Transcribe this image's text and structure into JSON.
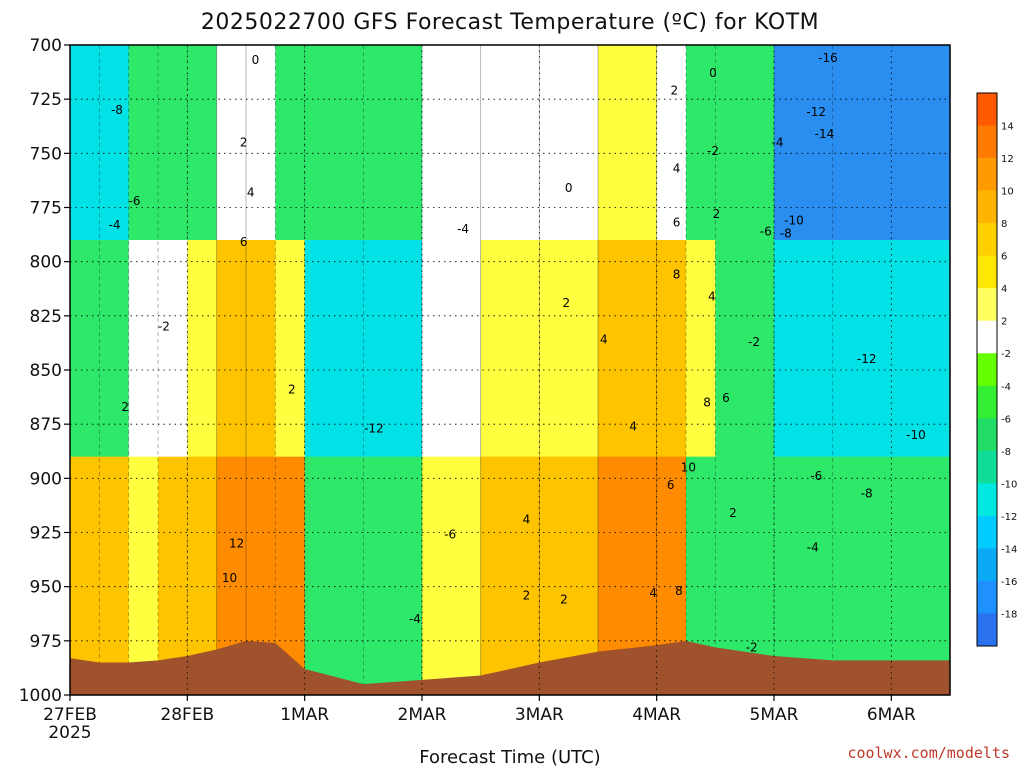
{
  "chart_data": {
    "type": "heatmap",
    "title": "2025022700 GFS Forecast Temperature (ºC) for KOTM",
    "xlabel": "Forecast Time (UTC)",
    "ylabel": "",
    "credit": "coolwx.com/modelts",
    "x_ticks": [
      "27FEB",
      "28FEB",
      "1MAR",
      "2MAR",
      "3MAR",
      "4MAR",
      "5MAR",
      "6MAR"
    ],
    "x_year": "2025",
    "y_ticks": [
      700,
      725,
      750,
      775,
      800,
      825,
      850,
      875,
      900,
      925,
      950,
      975,
      1000
    ],
    "ylim": [
      700,
      1000
    ],
    "xlim_days": [
      0,
      7.5
    ],
    "colorbar": {
      "ticks": [
        "14",
        "12",
        "10",
        "8",
        "6",
        "4",
        "2",
        "-2",
        "-4",
        "-6",
        "-8",
        "-10",
        "-12",
        "-14",
        "-16",
        "-18"
      ],
      "colors": [
        "#ff5a00",
        "#ff7a00",
        "#ff9a00",
        "#ffb400",
        "#ffd000",
        "#ffe800",
        "#ffff60",
        "#ffffff",
        "#66ff00",
        "#33ee33",
        "#22dd66",
        "#11dd99",
        "#00e8e0",
        "#00ccff",
        "#0aaaf5",
        "#1e90ff",
        "#2a72ee"
      ]
    },
    "surface_color": "#a0522d",
    "columns": [
      {
        "day": 0.0,
        "top": "cyan",
        "mid": "green",
        "low": "orange",
        "surface_p": 983
      },
      {
        "day": 0.25,
        "top": "cyan",
        "mid": "green",
        "low": "orange",
        "surface_p": 985
      },
      {
        "day": 0.5,
        "top": "green",
        "mid": "white",
        "low": "yellow",
        "surface_p": 985
      },
      {
        "day": 0.75,
        "top": "green",
        "mid": "white",
        "low": "orange",
        "surface_p": 984
      },
      {
        "day": 1.0,
        "top": "green",
        "mid": "yellow",
        "low": "orange",
        "surface_p": 982
      },
      {
        "day": 1.25,
        "top": "white",
        "mid": "orange",
        "low": "dark-orange",
        "surface_p": 979
      },
      {
        "day": 1.5,
        "top": "white",
        "mid": "orange",
        "low": "dark-orange",
        "surface_p": 975
      },
      {
        "day": 1.75,
        "top": "green",
        "mid": "yellow",
        "low": "dark-orange",
        "surface_p": 976
      },
      {
        "day": 2.0,
        "top": "green",
        "mid": "cyan",
        "low": "green",
        "surface_p": 988
      },
      {
        "day": 2.5,
        "top": "green",
        "mid": "cyan",
        "low": "green",
        "surface_p": 995
      },
      {
        "day": 3.0,
        "top": "white",
        "mid": "white",
        "low": "yellow",
        "surface_p": 993
      },
      {
        "day": 3.5,
        "top": "white",
        "mid": "yellow",
        "low": "orange",
        "surface_p": 991
      },
      {
        "day": 4.0,
        "top": "white",
        "mid": "yellow",
        "low": "orange",
        "surface_p": 985
      },
      {
        "day": 4.5,
        "top": "yellow",
        "mid": "orange",
        "low": "dark-orange",
        "surface_p": 980
      },
      {
        "day": 5.0,
        "top": "white",
        "mid": "orange",
        "low": "dark-orange",
        "surface_p": 977
      },
      {
        "day": 5.25,
        "top": "green",
        "mid": "yellow",
        "low": "green",
        "surface_p": 975
      },
      {
        "day": 5.5,
        "top": "green",
        "mid": "green",
        "low": "green",
        "surface_p": 978
      },
      {
        "day": 6.0,
        "top": "blue",
        "mid": "cyan",
        "low": "green",
        "surface_p": 982
      },
      {
        "day": 6.5,
        "top": "blue",
        "mid": "cyan",
        "low": "green",
        "surface_p": 984
      }
    ],
    "contour_labels": [
      {
        "text": "-8",
        "day": 0.4,
        "p": 730
      },
      {
        "text": "-6",
        "day": 0.55,
        "p": 772
      },
      {
        "text": "-4",
        "day": 0.38,
        "p": 783
      },
      {
        "text": "-2",
        "day": 0.8,
        "p": 830
      },
      {
        "text": "2",
        "day": 0.47,
        "p": 867
      },
      {
        "text": "0",
        "day": 1.58,
        "p": 707
      },
      {
        "text": "2",
        "day": 1.48,
        "p": 745
      },
      {
        "text": "4",
        "day": 1.54,
        "p": 768
      },
      {
        "text": "6",
        "day": 1.48,
        "p": 791
      },
      {
        "text": "2",
        "day": 1.89,
        "p": 859
      },
      {
        "text": "12",
        "day": 1.42,
        "p": 930
      },
      {
        "text": "10",
        "day": 1.36,
        "p": 946
      },
      {
        "text": "-12",
        "day": 2.59,
        "p": 877
      },
      {
        "text": "-6",
        "day": 3.24,
        "p": 926
      },
      {
        "text": "-4",
        "day": 3.35,
        "p": 785
      },
      {
        "text": "-4",
        "day": 2.94,
        "p": 965
      },
      {
        "text": "0",
        "day": 4.25,
        "p": 766
      },
      {
        "text": "2",
        "day": 4.23,
        "p": 819
      },
      {
        "text": "4",
        "day": 4.55,
        "p": 836
      },
      {
        "text": "4",
        "day": 4.8,
        "p": 876
      },
      {
        "text": "4",
        "day": 3.89,
        "p": 919
      },
      {
        "text": "2",
        "day": 4.21,
        "p": 956
      },
      {
        "text": "2",
        "day": 3.89,
        "p": 954
      },
      {
        "text": "4",
        "day": 4.97,
        "p": 953
      },
      {
        "text": "2",
        "day": 5.15,
        "p": 721
      },
      {
        "text": "4",
        "day": 5.17,
        "p": 757
      },
      {
        "text": "6",
        "day": 5.17,
        "p": 782
      },
      {
        "text": "8",
        "day": 5.17,
        "p": 806
      },
      {
        "text": "0",
        "day": 5.48,
        "p": 713
      },
      {
        "text": "-2",
        "day": 5.48,
        "p": 749
      },
      {
        "text": "2",
        "day": 5.51,
        "p": 778
      },
      {
        "text": "4",
        "day": 5.47,
        "p": 816
      },
      {
        "text": "6",
        "day": 5.59,
        "p": 863
      },
      {
        "text": "8",
        "day": 5.43,
        "p": 865
      },
      {
        "text": "6",
        "day": 5.12,
        "p": 903
      },
      {
        "text": "10",
        "day": 5.27,
        "p": 895
      },
      {
        "text": "8",
        "day": 5.19,
        "p": 952
      },
      {
        "text": "2",
        "day": 5.65,
        "p": 916
      },
      {
        "text": "-2",
        "day": 5.83,
        "p": 837
      },
      {
        "text": "-2",
        "day": 5.81,
        "p": 978
      },
      {
        "text": "-4",
        "day": 6.03,
        "p": 745
      },
      {
        "text": "-6",
        "day": 5.93,
        "p": 786
      },
      {
        "text": "-8",
        "day": 6.1,
        "p": 787
      },
      {
        "text": "-10",
        "day": 6.17,
        "p": 781
      },
      {
        "text": "-12",
        "day": 6.36,
        "p": 731
      },
      {
        "text": "-14",
        "day": 6.43,
        "p": 741
      },
      {
        "text": "-16",
        "day": 6.46,
        "p": 706
      },
      {
        "text": "-12",
        "day": 6.79,
        "p": 845
      },
      {
        "text": "-10",
        "day": 7.21,
        "p": 880
      },
      {
        "text": "-6",
        "day": 6.36,
        "p": 899
      },
      {
        "text": "-8",
        "day": 6.79,
        "p": 907
      },
      {
        "text": "-4",
        "day": 6.33,
        "p": 932
      }
    ]
  }
}
